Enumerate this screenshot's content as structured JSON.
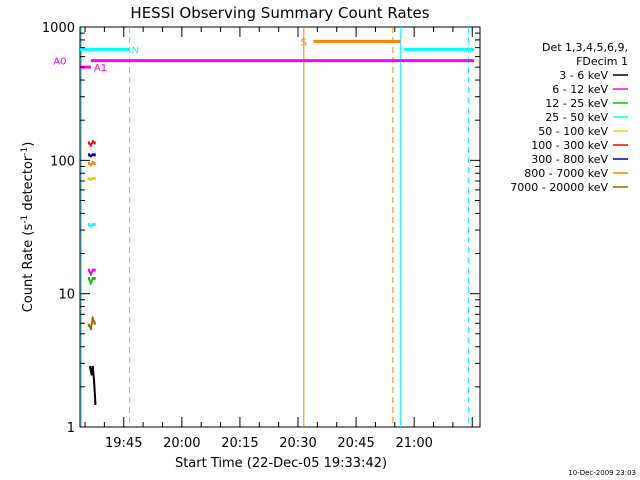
{
  "chart_data": {
    "type": "line",
    "title": "HESSI Observing Summary Count Rates",
    "xlabel": "Start Time (22-Dec-05 19:33:42)",
    "ylabel_prefix": "Count Rate (s",
    "ylabel_sup1": "-1",
    "ylabel_mid": " detector",
    "ylabel_sup2": "-1",
    "ylabel_suffix": ")",
    "xlim": [
      "19:33:42",
      "21:17:00"
    ],
    "ylim": [
      1,
      1000
    ],
    "y_scale": "log",
    "x_ticks": [
      "19:45",
      "20:00",
      "20:15",
      "20:30",
      "20:45",
      "21:00"
    ],
    "y_ticks": [
      {
        "value": 1,
        "label": "1"
      },
      {
        "value": 10,
        "label": "10"
      },
      {
        "value": 100,
        "label": "100"
      },
      {
        "value": 1000,
        "label": "1000"
      }
    ],
    "legend": {
      "position": "right",
      "header_lines": [
        "Det 1,3,4,5,6,9,",
        "FDecim 1"
      ]
    },
    "series": [
      {
        "name": "3 - 6 keV",
        "color": "#000000",
        "x": [
          "19:36:20",
          "19:36:40",
          "19:37:00",
          "19:37:20",
          "19:37:40"
        ],
        "y": [
          2.8,
          2.5,
          2.8,
          2.2,
          1.5
        ]
      },
      {
        "name": "6 - 12 keV",
        "color": "#ff00ff",
        "x": [
          "19:36:00",
          "19:36:30",
          "19:37:00",
          "19:37:30"
        ],
        "y": [
          15,
          14,
          15,
          15
        ]
      },
      {
        "name": "12 - 25 keV",
        "color": "#00cc00",
        "x": [
          "19:36:00",
          "19:36:30",
          "19:37:00",
          "19:37:30"
        ],
        "y": [
          13,
          12,
          13,
          13
        ]
      },
      {
        "name": "25 - 50 keV",
        "color": "#00ffff",
        "x": [
          "19:36:00",
          "19:36:30",
          "19:37:00",
          "19:37:30"
        ],
        "y": [
          33,
          32,
          33,
          33
        ]
      },
      {
        "name": "50 - 100 keV",
        "color": "#ffcc00",
        "x": [
          "19:36:00",
          "19:36:30",
          "19:37:00",
          "19:37:30"
        ],
        "y": [
          73,
          72,
          73,
          73
        ]
      },
      {
        "name": "100 - 300 keV",
        "color": "#ff0000",
        "x": [
          "19:36:00",
          "19:36:30",
          "19:37:00",
          "19:37:30"
        ],
        "y": [
          135,
          130,
          138,
          135
        ]
      },
      {
        "name": "300 - 800 keV",
        "color": "#000099",
        "x": [
          "19:36:00",
          "19:36:30",
          "19:37:00",
          "19:37:30"
        ],
        "y": [
          110,
          108,
          110,
          110
        ]
      },
      {
        "name": "800 - 7000 keV",
        "color": "#ff8000",
        "x": [
          "19:36:00",
          "19:36:30",
          "19:37:00",
          "19:37:30"
        ],
        "y": [
          95,
          92,
          96,
          95
        ]
      },
      {
        "name": "7000 - 20000 keV",
        "color": "#996600",
        "x": [
          "19:36:00",
          "19:36:30",
          "19:37:00",
          "19:37:30"
        ],
        "y": [
          5.8,
          5.5,
          6.5,
          6.0
        ]
      }
    ],
    "flag_bars": [
      {
        "label": "N",
        "color": "#00ffff",
        "y": 680,
        "segments": [
          [
            "19:33:42",
            "19:46:30"
          ],
          [
            "20:57:20",
            "21:15:30"
          ]
        ],
        "label_at": "19:48:00"
      },
      {
        "label": "S",
        "color": "#ff8000",
        "y": 780,
        "segments": [
          [
            "20:34:00",
            "20:56:30"
          ]
        ],
        "label_at": "20:31:30"
      },
      {
        "label": "A0",
        "color": "#ff00ff",
        "y": 560,
        "segments": [
          [
            "19:36:30",
            "21:15:30"
          ]
        ],
        "label_at": "19:28:30"
      },
      {
        "label": "A1",
        "color": "#ff00ff",
        "y": 500,
        "segments": [
          [
            "19:33:42",
            "19:36:30"
          ]
        ],
        "label_at": "19:39:00"
      }
    ],
    "vertical_lines": [
      {
        "x": "19:34:00",
        "color": "#00ffff",
        "style": "solid"
      },
      {
        "x": "19:46:30",
        "color": "#00ffff",
        "style": "dashed"
      },
      {
        "x": "20:31:30",
        "color": "#ff8000",
        "style": "solid"
      },
      {
        "x": "20:54:30",
        "color": "#ff8000",
        "style": "dashed"
      },
      {
        "x": "20:56:30",
        "color": "#00ffff",
        "style": "solid"
      },
      {
        "x": "21:14:00",
        "color": "#00ffff",
        "style": "dashed"
      }
    ]
  },
  "footer": {
    "timestamp": "10-Dec-2009 23:03"
  }
}
